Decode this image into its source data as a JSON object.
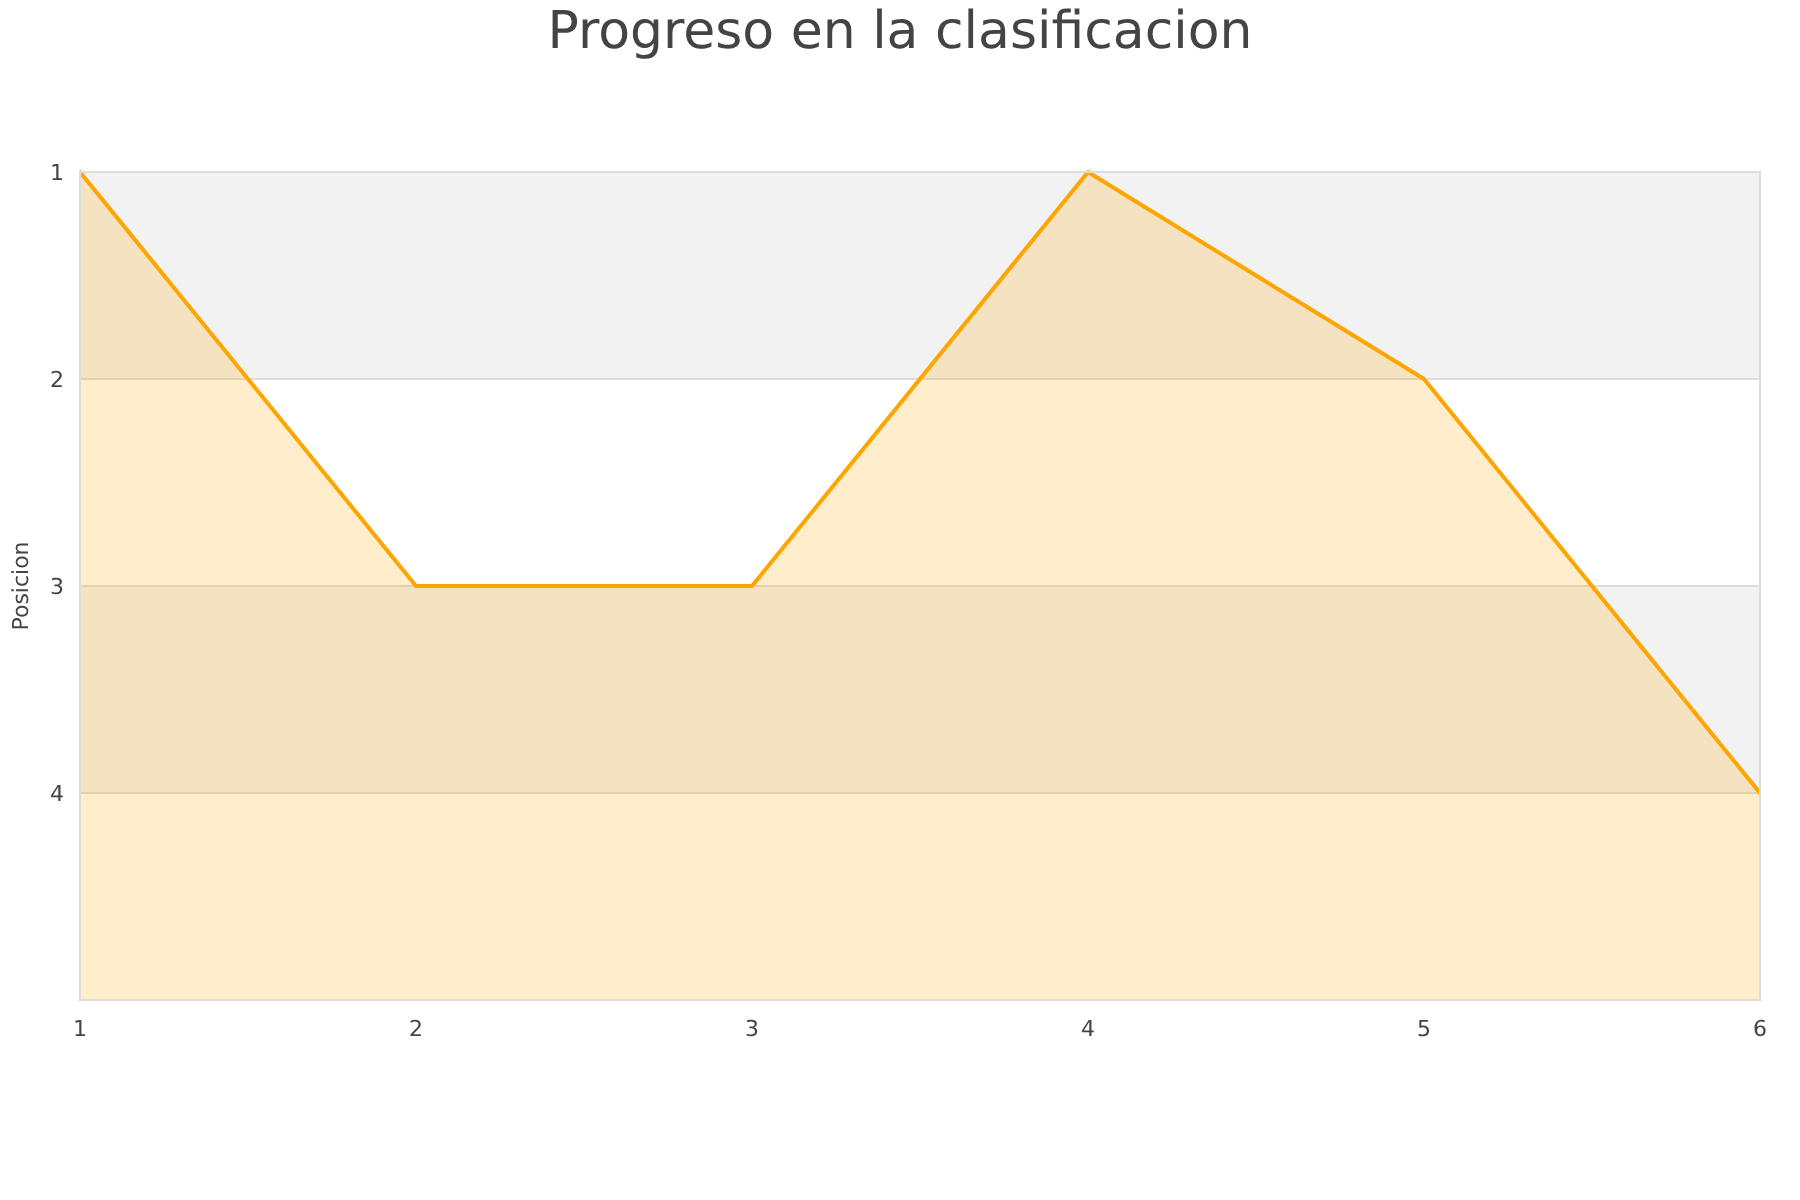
{
  "chart_data": {
    "type": "area",
    "title": "Progreso en la clasificacion",
    "ylabel": "Posicion",
    "x": [
      1,
      2,
      3,
      4,
      5,
      6
    ],
    "series": [
      {
        "color": "#ffa500",
        "values": [
          1,
          3,
          3,
          1,
          2,
          4
        ]
      }
    ],
    "xlim": [
      1,
      6
    ],
    "xticks": [
      1,
      2,
      3,
      4,
      5,
      6
    ],
    "ylim": [
      5,
      1
    ],
    "yticks": [
      1,
      2,
      3,
      4
    ],
    "grid": "y",
    "bands": [
      {
        "axis": "y",
        "from": 1,
        "to": 2,
        "color": "#f2f2f2"
      },
      {
        "axis": "y",
        "from": 3,
        "to": 4,
        "color": "#f2f2f2"
      }
    ]
  }
}
